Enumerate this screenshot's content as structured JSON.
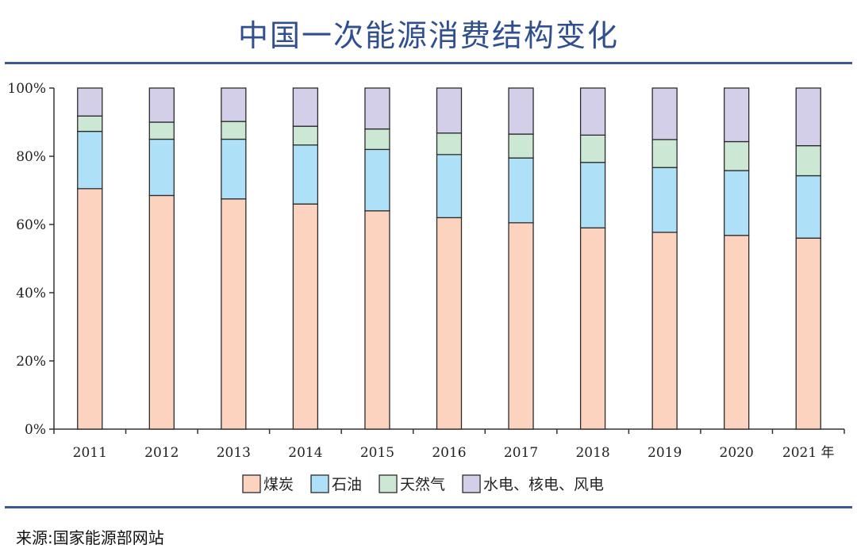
{
  "title": "中国一次能源消费结构变化",
  "source": "来源:国家能源部网站",
  "chart_data": {
    "type": "bar",
    "stacked": true,
    "categories": [
      "2011",
      "2012",
      "2013",
      "2014",
      "2015",
      "2016",
      "2017",
      "2018",
      "2019",
      "2020",
      "2021 年"
    ],
    "series": [
      {
        "name": "煤炭",
        "color": "#fbd3bf",
        "values": [
          70.5,
          68.5,
          67.5,
          66.0,
          64.0,
          62.0,
          60.5,
          59.0,
          57.7,
          56.8,
          56.0
        ]
      },
      {
        "name": "石油",
        "color": "#aee0f7",
        "values": [
          16.8,
          16.5,
          17.5,
          17.3,
          18.0,
          18.5,
          19.0,
          19.2,
          19.0,
          19.0,
          18.3
        ]
      },
      {
        "name": "天然气",
        "color": "#cce8d4",
        "values": [
          4.5,
          5.0,
          5.2,
          5.5,
          6.0,
          6.3,
          7.0,
          8.0,
          8.2,
          8.5,
          8.8
        ]
      },
      {
        "name": "水电、核电、风电",
        "color": "#d3cfe8",
        "values": [
          8.2,
          10.0,
          9.8,
          11.2,
          12.0,
          13.2,
          13.5,
          13.8,
          15.1,
          15.7,
          16.9
        ]
      }
    ],
    "yticks": [
      "0%",
      "20%",
      "40%",
      "60%",
      "80%",
      "100%"
    ],
    "ylim": [
      0,
      100
    ],
    "legend": "bottom"
  }
}
